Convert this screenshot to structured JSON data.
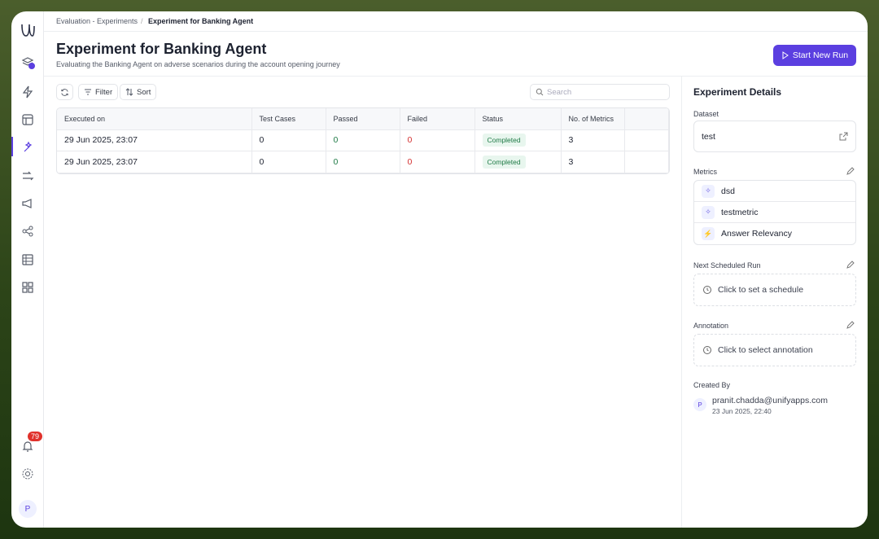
{
  "breadcrumb": [
    "Evaluation - Experiments",
    "Experiment for Banking Agent"
  ],
  "header": {
    "title": "Experiment for Banking Agent",
    "subtitle": "Evaluating the Banking Agent on adverse scenarios during the account opening journey",
    "button": "Start New Run"
  },
  "toolbar": {
    "filter": "Filter",
    "sort": "Sort",
    "search_placeholder": "Search"
  },
  "table": {
    "columns": [
      "Executed on",
      "Test Cases",
      "Passed",
      "Failed",
      "Status",
      "No. of Metrics"
    ],
    "rows": [
      [
        "29 Jun 2025, 23:07",
        0,
        0,
        0,
        "Completed",
        3
      ],
      [
        "29 Jun 2025, 23:07",
        0,
        0,
        0,
        "Completed",
        3
      ]
    ]
  },
  "details": {
    "title": "Experiment Details",
    "dataset_label": "Dataset",
    "dataset": "test",
    "metrics_label": "Metrics",
    "metrics": [
      "dsd",
      "testmetric",
      "Answer Relevancy"
    ],
    "schedule_label": "Next Scheduled Run",
    "schedule_action": "Click to set a schedule",
    "annotation_label": "Annotation",
    "annotation_action": "Click to select annotation",
    "created_by_label": "Created By",
    "creator_initial": "P",
    "creator_email": "pranit.chadda@unifyapps.com",
    "created_at": "23 Jun 2025, 22:40"
  },
  "sidebar": {
    "notifications": "79",
    "user_initial": "P"
  }
}
